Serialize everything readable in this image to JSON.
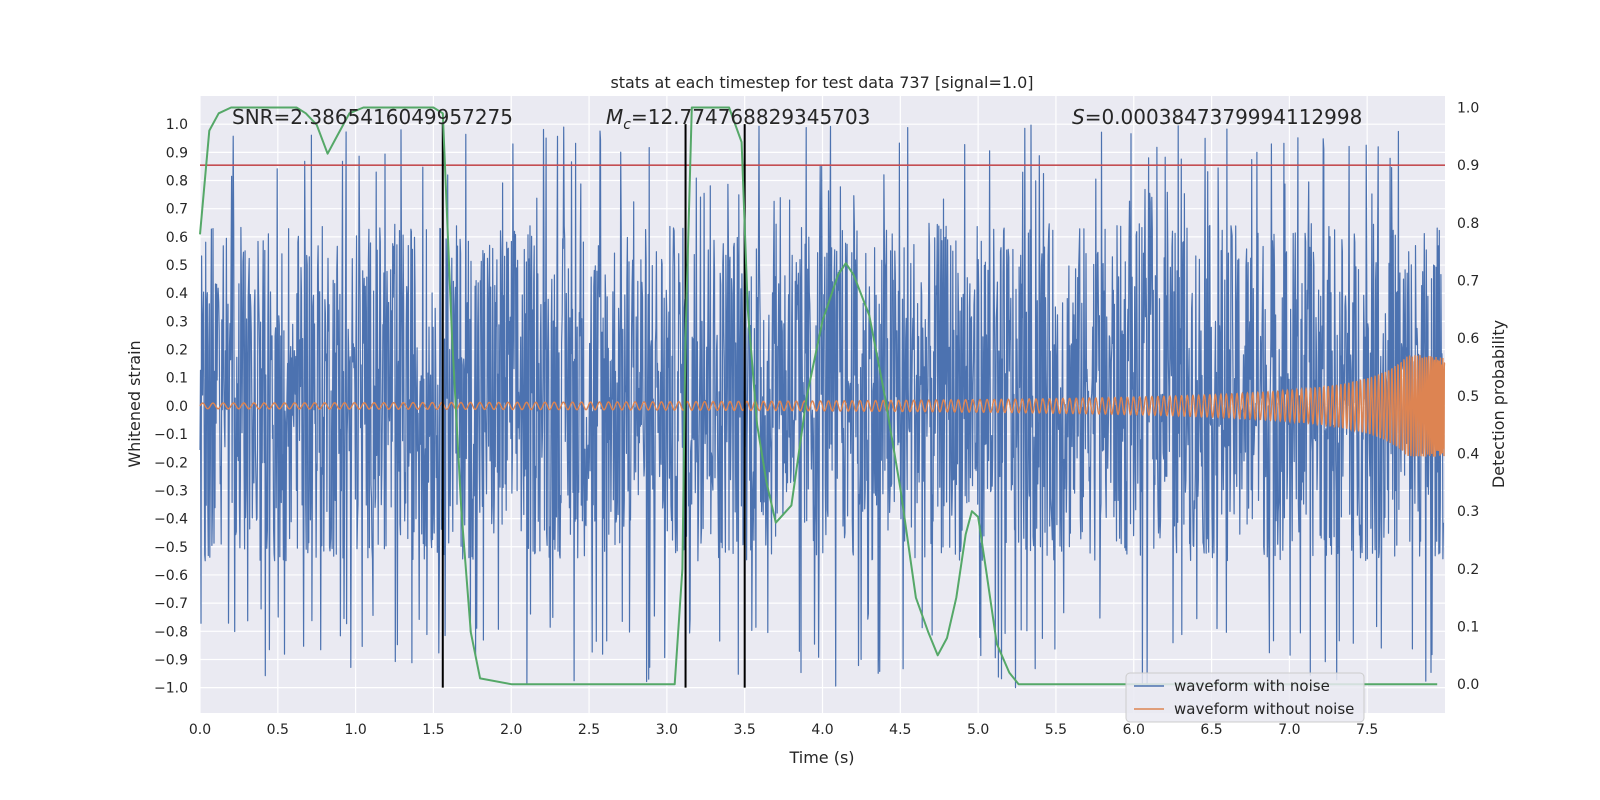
{
  "chart_data": {
    "type": "line",
    "title": "stats at each timestep for test data 737 [signal=1.0]",
    "xlabel": "Time (s)",
    "ylabel": "Whitened strain",
    "y2label": "Detection probability",
    "xlim": [
      0.0,
      8.0
    ],
    "ylim": [
      -1.09,
      1.1
    ],
    "y2lim": [
      -0.05,
      1.02
    ],
    "x_ticks": [
      0.0,
      0.5,
      1.0,
      1.5,
      2.0,
      2.5,
      3.0,
      3.5,
      4.0,
      4.5,
      5.0,
      5.5,
      6.0,
      6.5,
      7.0,
      7.5
    ],
    "x_tick_labels": [
      "0.0",
      "0.5",
      "1.0",
      "1.5",
      "2.0",
      "2.5",
      "3.0",
      "3.5",
      "4.0",
      "4.5",
      "5.0",
      "5.5",
      "6.0",
      "6.5",
      "7.0",
      "7.5"
    ],
    "y_ticks": [
      1.0,
      0.9,
      0.8,
      0.7,
      0.6,
      0.5,
      0.4,
      0.3,
      0.2,
      0.1,
      0.0,
      -0.1,
      -0.2,
      -0.3,
      -0.4,
      -0.5,
      -0.6,
      -0.7,
      -0.8,
      -0.9,
      -1.0
    ],
    "y_tick_labels": [
      "1.0",
      "0.9",
      "0.8",
      "0.7",
      "0.6",
      "0.5",
      "0.4",
      "0.3",
      "0.2",
      "0.1",
      "0.0",
      "−0.1",
      "−0.2",
      "−0.3",
      "−0.4",
      "−0.5",
      "−0.6",
      "−0.7",
      "−0.8",
      "−0.9",
      "−1.0"
    ],
    "y2_ticks": [
      1.0,
      0.9,
      0.8,
      0.7,
      0.6,
      0.5,
      0.4,
      0.3,
      0.2,
      0.1,
      0.0
    ],
    "y2_tick_labels": [
      "1.0",
      "0.9",
      "0.8",
      "0.7",
      "0.6",
      "0.5",
      "0.4",
      "0.3",
      "0.2",
      "0.1",
      "0.0"
    ],
    "annotations": {
      "snr": "SNR=2.3865416049957275",
      "mc_symbol": "M",
      "mc_subscript": "c",
      "mc_value": "=12.774768829345703",
      "s_symbol": "S",
      "s_value": "=0.0003847379994112998"
    },
    "threshold": {
      "value": 0.9,
      "axis": "right",
      "color": "#c44e52"
    },
    "vertical_lines": [
      1.56,
      3.12,
      3.5
    ],
    "legend": {
      "position": "lower-right",
      "entries": [
        {
          "label": "waveform with noise",
          "color": "#4c72b0"
        },
        {
          "label": "waveform without noise",
          "color": "#dd8452"
        }
      ]
    },
    "series": [
      {
        "name": "waveform with noise",
        "axis": "left",
        "color": "#4c72b0",
        "style": "dense-noise",
        "x_range": [
          0.0,
          7.99
        ],
        "typical_envelope": [
          -0.55,
          0.65
        ],
        "peak_range": [
          -1.0,
          1.0
        ]
      },
      {
        "name": "waveform without noise",
        "axis": "left",
        "color": "#dd8452",
        "style": "chirp",
        "x_range": [
          0.0,
          8.0
        ],
        "start_amplitude": 0.01,
        "end_amplitude": 0.18
      },
      {
        "name": "detection probability",
        "axis": "right",
        "color": "#55a868",
        "x": [
          0.0,
          0.06,
          0.12,
          0.2,
          0.35,
          0.5,
          0.62,
          0.68,
          0.75,
          0.82,
          0.88,
          0.96,
          1.05,
          1.2,
          1.4,
          1.5,
          1.56,
          1.62,
          1.68,
          1.74,
          1.8,
          2.0,
          2.5,
          3.0,
          3.05,
          3.1,
          3.12,
          3.16,
          3.2,
          3.3,
          3.4,
          3.48,
          3.52,
          3.58,
          3.64,
          3.7,
          3.8,
          3.9,
          4.0,
          4.1,
          4.15,
          4.2,
          4.3,
          4.4,
          4.5,
          4.6,
          4.68,
          4.74,
          4.8,
          4.86,
          4.92,
          4.96,
          5.0,
          5.05,
          5.12,
          5.2,
          5.26,
          5.4,
          6.0,
          7.0,
          7.95
        ],
        "y": [
          0.78,
          0.96,
          0.99,
          1.0,
          1.0,
          1.0,
          1.0,
          0.99,
          0.97,
          0.92,
          0.95,
          0.99,
          1.0,
          1.0,
          1.0,
          1.0,
          0.99,
          0.6,
          0.3,
          0.09,
          0.01,
          0.0,
          0.0,
          0.0,
          0.0,
          0.2,
          0.6,
          1.0,
          1.0,
          1.0,
          1.0,
          0.94,
          0.65,
          0.45,
          0.35,
          0.28,
          0.31,
          0.5,
          0.63,
          0.71,
          0.73,
          0.71,
          0.64,
          0.5,
          0.34,
          0.15,
          0.09,
          0.05,
          0.08,
          0.15,
          0.26,
          0.3,
          0.29,
          0.2,
          0.07,
          0.02,
          0.0,
          0.0,
          0.0,
          0.0,
          0.0
        ]
      }
    ]
  }
}
